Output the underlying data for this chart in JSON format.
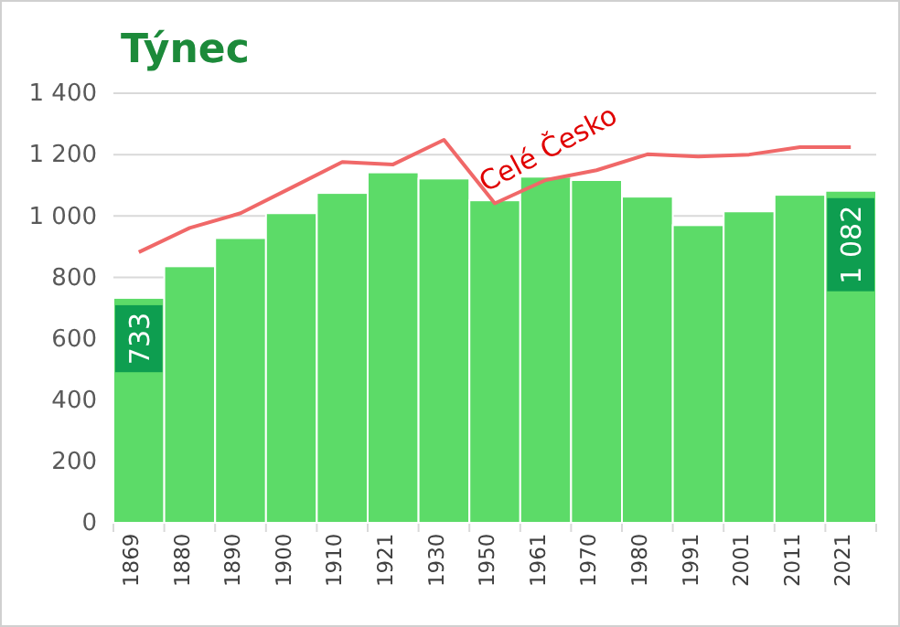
{
  "chart_data": {
    "type": "bar",
    "title": "Týnec",
    "categories": [
      "1869",
      "1880",
      "1890",
      "1900",
      "1910",
      "1921",
      "1930",
      "1950",
      "1961",
      "1970",
      "1980",
      "1991",
      "2001",
      "2011",
      "2021"
    ],
    "series": [
      {
        "color": "#5cdb68",
        "values": [
          733,
          836,
          928,
          1009,
          1075,
          1142,
          1122,
          1051,
          1128,
          1117,
          1063,
          970,
          1015,
          1069,
          1082
        ],
        "value_labels": [
          "733",
          null,
          null,
          null,
          null,
          null,
          null,
          null,
          null,
          null,
          null,
          null,
          null,
          null,
          "1 082"
        ]
      },
      {
        "type": "line",
        "name": "Celé Česko",
        "color": "#f06868",
        "values": [
          882,
          961,
          1009,
          1092,
          1176,
          1168,
          1248,
          1041,
          1117,
          1149,
          1201,
          1194,
          1200,
          1224,
          1224
        ]
      }
    ],
    "ylim": [
      0,
      1400
    ],
    "yticks": [
      0,
      200,
      400,
      600,
      800,
      {
        "value": 1000,
        "label": "1 000"
      },
      {
        "value": 1200,
        "label": "1 200"
      },
      {
        "value": 1400,
        "label": "1 400"
      }
    ],
    "grid": "y"
  }
}
